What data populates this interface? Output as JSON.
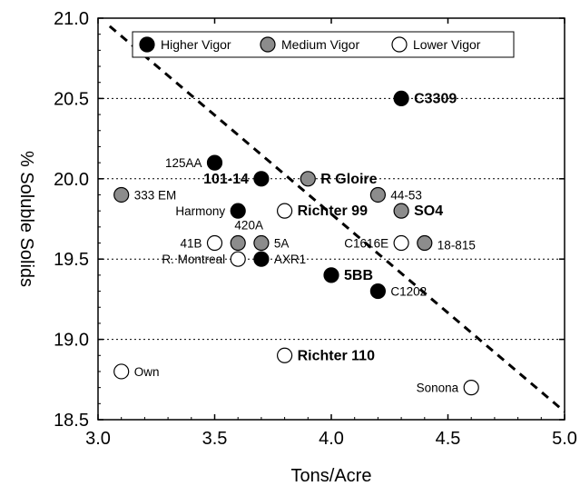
{
  "chart_data": {
    "type": "scatter",
    "xlabel": "Tons/Acre",
    "ylabel": "% Soluble Solids",
    "xlim": [
      3.0,
      5.0
    ],
    "ylim": [
      18.5,
      21.0
    ],
    "xticks": [
      "3.0",
      "3.5",
      "4.0",
      "4.5",
      "5.0"
    ],
    "yticks": [
      "18.5",
      "19.0",
      "19.5",
      "20.0",
      "20.5",
      "21.0"
    ],
    "grid": "horizontal dotted",
    "legend_position": "top",
    "legend": [
      {
        "label": "Higher Vigor",
        "fill": "#000000"
      },
      {
        "label": "Medium Vigor",
        "fill": "#8c8c8c"
      },
      {
        "label": "Lower Vigor",
        "fill": "#ffffff"
      }
    ],
    "trendline": {
      "style": "dashed",
      "x": [
        3.05,
        5.0
      ],
      "y": [
        20.95,
        18.55
      ]
    },
    "series": [
      {
        "name": "Higher Vigor",
        "color": "#000000",
        "points": [
          {
            "label": "125AA",
            "x": 3.5,
            "y": 20.1,
            "bold": false
          },
          {
            "label": "101-14",
            "x": 3.7,
            "y": 20.0,
            "bold": true
          },
          {
            "label": "C3309",
            "x": 4.3,
            "y": 20.5,
            "bold": true
          },
          {
            "label": "Harmony",
            "x": 3.6,
            "y": 19.8,
            "bold": false
          },
          {
            "label": "AXR1",
            "x": 3.7,
            "y": 19.5,
            "bold": false
          },
          {
            "label": "5BB",
            "x": 4.0,
            "y": 19.4,
            "bold": true
          },
          {
            "label": "C1202",
            "x": 4.2,
            "y": 19.3,
            "bold": false
          }
        ]
      },
      {
        "name": "Medium Vigor",
        "color": "#8c8c8c",
        "points": [
          {
            "label": "333 EM",
            "x": 3.1,
            "y": 19.9,
            "bold": false
          },
          {
            "label": "R Gloire",
            "x": 3.9,
            "y": 20.0,
            "bold": true
          },
          {
            "label": "44-53",
            "x": 4.2,
            "y": 19.9,
            "bold": false
          },
          {
            "label": "SO4",
            "x": 4.3,
            "y": 19.8,
            "bold": true
          },
          {
            "label": "420A",
            "x": 3.6,
            "y": 19.6,
            "bold": false
          },
          {
            "label": "5A",
            "x": 3.7,
            "y": 19.6,
            "bold": false
          },
          {
            "label": "18-815",
            "x": 4.4,
            "y": 19.6,
            "bold": false
          }
        ]
      },
      {
        "name": "Lower Vigor",
        "color": "#ffffff",
        "points": [
          {
            "label": "Richter 99",
            "x": 3.8,
            "y": 19.8,
            "bold": true
          },
          {
            "label": "41B",
            "x": 3.5,
            "y": 19.6,
            "bold": false
          },
          {
            "label": "C1616E",
            "x": 4.3,
            "y": 19.6,
            "bold": false
          },
          {
            "label": "R. Montreal",
            "x": 3.6,
            "y": 19.5,
            "bold": false
          },
          {
            "label": "Richter 110",
            "x": 3.8,
            "y": 18.9,
            "bold": true
          },
          {
            "label": "Own",
            "x": 3.1,
            "y": 18.8,
            "bold": false
          },
          {
            "label": "Sonona",
            "x": 4.6,
            "y": 18.7,
            "bold": false
          }
        ]
      }
    ]
  }
}
